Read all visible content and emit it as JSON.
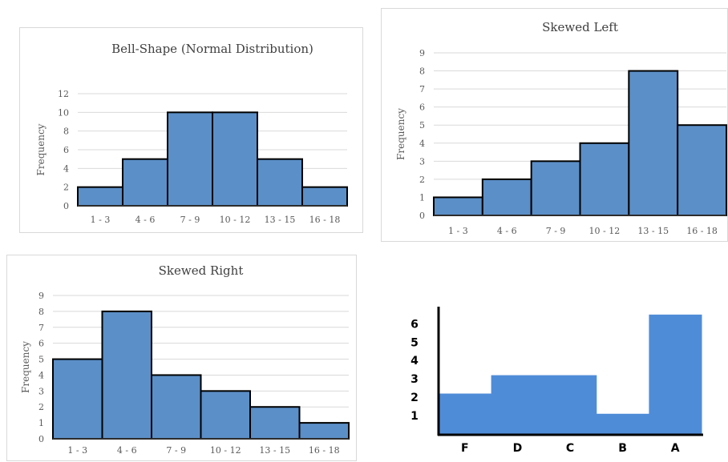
{
  "chart_data": [
    {
      "type": "bar",
      "title": "Bell-Shape (Normal Distribution)",
      "ylabel": "Frequency",
      "xlabel": "",
      "categories": [
        "1 - 3",
        "4 - 6",
        "7 - 9",
        "10 - 12",
        "13 - 15",
        "16 - 18"
      ],
      "values": [
        2,
        5,
        10,
        10,
        5,
        2
      ],
      "ylim": [
        0,
        12
      ],
      "yticks": [
        0,
        2,
        4,
        6,
        8,
        10,
        12
      ],
      "grid": true,
      "bar_color": "#5b8fc8"
    },
    {
      "type": "bar",
      "title": "Skewed Left",
      "ylabel": "Frequency",
      "xlabel": "",
      "categories": [
        "1 - 3",
        "4 - 6",
        "7 - 9",
        "10 - 12",
        "13 - 15",
        "16 - 18"
      ],
      "values": [
        1,
        2,
        3,
        4,
        8,
        5
      ],
      "ylim": [
        0,
        9
      ],
      "yticks": [
        0,
        1,
        2,
        3,
        4,
        5,
        6,
        7,
        8,
        9
      ],
      "grid": true,
      "bar_color": "#5b8fc8"
    },
    {
      "type": "bar",
      "title": "Skewed Right",
      "ylabel": "Frequency",
      "xlabel": "",
      "categories": [
        "1 - 3",
        "4 - 6",
        "7 - 9",
        "10 - 12",
        "13 - 15",
        "16 - 18"
      ],
      "values": [
        5,
        8,
        4,
        3,
        2,
        1
      ],
      "ylim": [
        0,
        9
      ],
      "yticks": [
        0,
        1,
        2,
        3,
        4,
        5,
        6,
        7,
        8,
        9
      ],
      "grid": true,
      "bar_color": "#5b8fc8"
    },
    {
      "type": "bar",
      "title": "",
      "ylabel": "",
      "xlabel": "",
      "categories": [
        "F",
        "D",
        "C",
        "B",
        "A"
      ],
      "values": [
        2.2,
        3.2,
        3.2,
        1.1,
        6.5
      ],
      "ylim": [
        0,
        6.8
      ],
      "yticks": [
        1,
        2,
        3,
        4,
        5,
        6
      ],
      "grid": false,
      "bar_color": "#4f8cd8"
    }
  ]
}
